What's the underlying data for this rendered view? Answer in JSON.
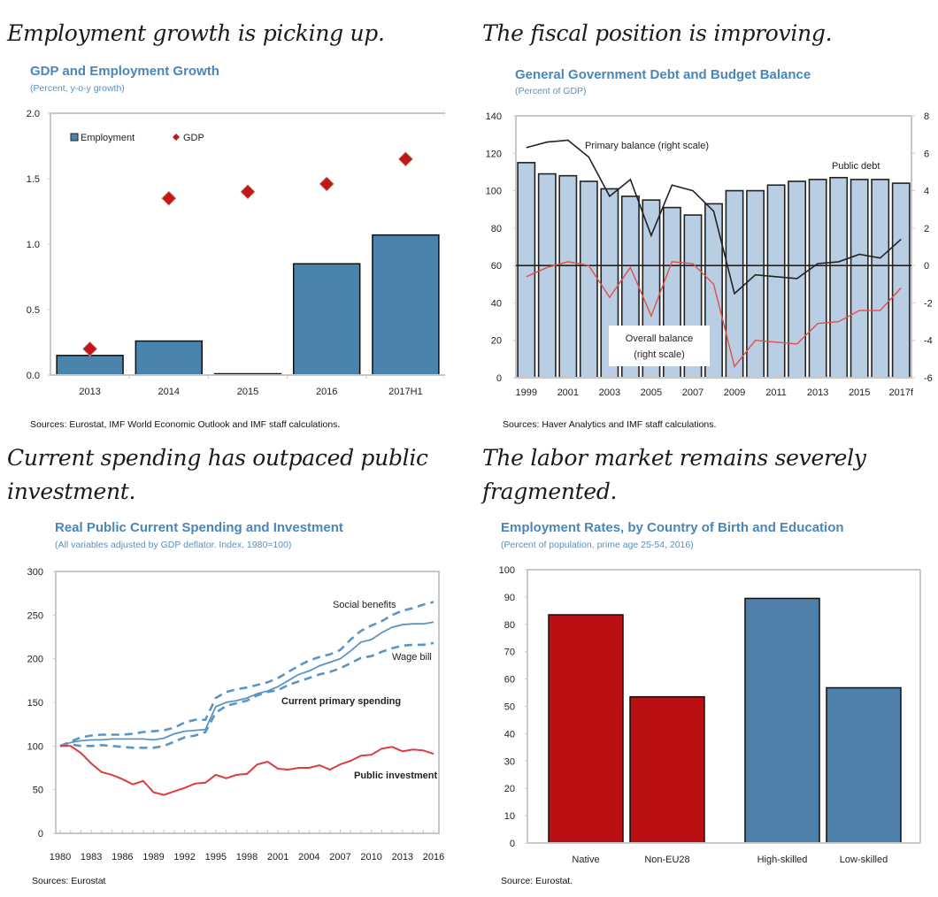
{
  "panels": [
    {
      "headline": "Employment growth is picking up.",
      "title": "GDP and Employment Growth",
      "subtitle": "(Percent, y-o-y growth)",
      "source": "Sources: Eurostat, IMF World Economic Outlook and IMF staff calculations."
    },
    {
      "headline": "The fiscal position is improving.",
      "title": "General Government Debt and Budget Balance",
      "subtitle": "(Percent of GDP)",
      "source": "Sources: Haver Analytics and IMF staff calculations."
    },
    {
      "headline_line1": "Current spending has outpaced public",
      "headline_line2": "investment.",
      "title": "Real Public Current Spending and Investment",
      "subtitle": "(All variables adjusted by GDP deflator. Index, 1980=100)",
      "source": "Sources: Eurostat"
    },
    {
      "headline_line1": "The labor market remains severely",
      "headline_line2": "fragmented.",
      "title": "Employment Rates, by Country of Birth and Education",
      "subtitle": "(Percent of population, prime age 25-54, 2016)",
      "source": "Source: Eurostat."
    }
  ],
  "colors": {
    "employment_bar": "#4a83ab",
    "gdp_marker": "#c0161c",
    "debt_bar": "#b9cde3",
    "primary_line": "#222222",
    "overall_line": "#e0504e",
    "spending_line": "#5b95c4",
    "investment_line": "#e03a3e",
    "native_bar": "#bb0f14",
    "skill_bar": "#4e80aa",
    "annotation_red": "#d9262b",
    "annotation_blue": "#4a86b8"
  },
  "chart_data": [
    {
      "type": "bar",
      "title": "GDP and Employment Growth",
      "subtitle": "(Percent, y-o-y growth)",
      "categories": [
        "2013",
        "2014",
        "2015",
        "2016",
        "2017H1"
      ],
      "series": [
        {
          "name": "Employment",
          "kind": "bar",
          "values": [
            0.15,
            0.26,
            0.01,
            0.85,
            1.07
          ]
        },
        {
          "name": "GDP",
          "kind": "diamond",
          "values": [
            0.2,
            1.35,
            1.4,
            1.46,
            1.65
          ]
        }
      ],
      "ylim": [
        0,
        2.0
      ],
      "yticks": [
        "0.0",
        "0.5",
        "1.0",
        "1.5",
        "2.0"
      ],
      "ytick_values": [
        0,
        0.5,
        1.0,
        1.5,
        2.0
      ],
      "legend": [
        "Employment",
        "GDP"
      ],
      "legend_position": "top-left",
      "xlabel": "",
      "ylabel": ""
    },
    {
      "type": "bar",
      "title": "General Government Debt and Budget Balance",
      "subtitle": "(Percent of GDP)",
      "categories": [
        "1999",
        "2000",
        "2001",
        "2002",
        "2003",
        "2004",
        "2005",
        "2006",
        "2007",
        "2008",
        "2009",
        "2010",
        "2011",
        "2012",
        "2013",
        "2014",
        "2015",
        "2016",
        "2017f"
      ],
      "xtick_labels": [
        "1999",
        "2001",
        "2003",
        "2005",
        "2007",
        "2009",
        "2011",
        "2013",
        "2015",
        "2017f"
      ],
      "series": [
        {
          "name": "Public debt",
          "kind": "bar",
          "axis": "left",
          "values": [
            115,
            109,
            108,
            105,
            101,
            97,
            95,
            91,
            87,
            93,
            100,
            100,
            103,
            105,
            106,
            107,
            106,
            106,
            104
          ]
        },
        {
          "name": "Primary balance (right scale)",
          "kind": "line",
          "axis": "right",
          "values": [
            6.3,
            6.6,
            6.7,
            5.8,
            3.7,
            4.6,
            1.6,
            4.3,
            4.0,
            2.9,
            -1.5,
            -0.5,
            -0.6,
            -0.7,
            0.1,
            0.2,
            0.6,
            0.4,
            1.4
          ]
        },
        {
          "name": "Overall balance (right scale)",
          "kind": "line",
          "axis": "right",
          "values": [
            -0.6,
            -0.1,
            0.2,
            0.0,
            -1.7,
            -0.1,
            -2.7,
            0.2,
            0.1,
            -1.0,
            -5.4,
            -4.0,
            -4.1,
            -4.2,
            -3.1,
            -3.0,
            -2.4,
            -2.4,
            -1.2
          ]
        }
      ],
      "ylim_left": [
        0,
        140
      ],
      "yticks_left": [
        "0",
        "20",
        "40",
        "60",
        "80",
        "100",
        "120",
        "140"
      ],
      "ylim_right": [
        -6,
        8
      ],
      "yticks_right": [
        "-6",
        "-4",
        "-2",
        "0",
        "2",
        "4",
        "6",
        "8"
      ],
      "zero_line_right": 0,
      "annotations": {
        "primary": "Primary balance (right scale)",
        "debt": "Public debt",
        "overall_1": "Overall balance",
        "overall_2": "(right scale)"
      }
    },
    {
      "type": "line",
      "title": "Real Public Current Spending and Investment",
      "subtitle": "(All variables adjusted by GDP deflator. Index, 1980=100)",
      "x": [
        1980,
        1981,
        1982,
        1983,
        1984,
        1985,
        1986,
        1987,
        1988,
        1989,
        1990,
        1991,
        1992,
        1993,
        1994,
        1995,
        1996,
        1997,
        1998,
        1999,
        2000,
        2001,
        2002,
        2003,
        2004,
        2005,
        2006,
        2007,
        2008,
        2009,
        2010,
        2011,
        2012,
        2013,
        2014,
        2015,
        2016
      ],
      "xtick_labels": [
        "1980",
        "1983",
        "1986",
        "1989",
        "1992",
        "1995",
        "1998",
        "2001",
        "2004",
        "2007",
        "2010",
        "2013",
        "2016"
      ],
      "series": [
        {
          "name": "Social benefits",
          "style": "dashed",
          "values": [
            100,
            105,
            110,
            112,
            113,
            113,
            113,
            114,
            116,
            117,
            118,
            121,
            127,
            130,
            130,
            155,
            162,
            165,
            167,
            170,
            173,
            178,
            185,
            192,
            198,
            202,
            205,
            210,
            222,
            232,
            238,
            243,
            250,
            255,
            258,
            262,
            265
          ]
        },
        {
          "name": "Current primary spending",
          "style": "solid",
          "values": [
            100,
            104,
            106,
            107,
            107,
            108,
            108,
            108,
            108,
            107,
            109,
            114,
            117,
            118,
            119,
            145,
            150,
            152,
            155,
            160,
            163,
            168,
            175,
            182,
            186,
            192,
            196,
            200,
            209,
            219,
            222,
            230,
            236,
            239,
            240,
            240,
            242
          ]
        },
        {
          "name": "Wage bill",
          "style": "dashed",
          "values": [
            100,
            102,
            100,
            100,
            101,
            100,
            99,
            98,
            98,
            98,
            100,
            105,
            110,
            112,
            116,
            138,
            146,
            149,
            152,
            158,
            162,
            164,
            170,
            174,
            178,
            182,
            185,
            189,
            195,
            201,
            203,
            208,
            212,
            215,
            216,
            216,
            218
          ]
        },
        {
          "name": "Public investment",
          "style": "solid",
          "values": [
            100,
            100,
            92,
            80,
            70,
            67,
            62,
            56,
            60,
            47,
            44,
            48,
            52,
            57,
            58,
            67,
            63,
            67,
            68,
            79,
            82,
            74,
            73,
            75,
            75,
            78,
            73,
            79,
            83,
            89,
            90,
            97,
            99,
            94,
            96,
            95,
            91
          ]
        }
      ],
      "ylim": [
        0,
        300
      ],
      "yticks": [
        "0",
        "50",
        "100",
        "150",
        "200",
        "250",
        "300"
      ]
    },
    {
      "type": "bar",
      "title": "Employment Rates, by Country of Birth and Education",
      "subtitle": "(Percent of population, prime age 25-54, 2016)",
      "categories": [
        "Native",
        "Non-EU28",
        "High-skilled",
        "Low-skilled"
      ],
      "groups": [
        "country-of-birth",
        "country-of-birth",
        "education",
        "education"
      ],
      "values": [
        83.5,
        53.5,
        89.5,
        56.8
      ],
      "ylim": [
        0,
        100
      ],
      "yticks": [
        "0",
        "10",
        "20",
        "30",
        "40",
        "50",
        "60",
        "70",
        "80",
        "90",
        "100"
      ]
    }
  ]
}
